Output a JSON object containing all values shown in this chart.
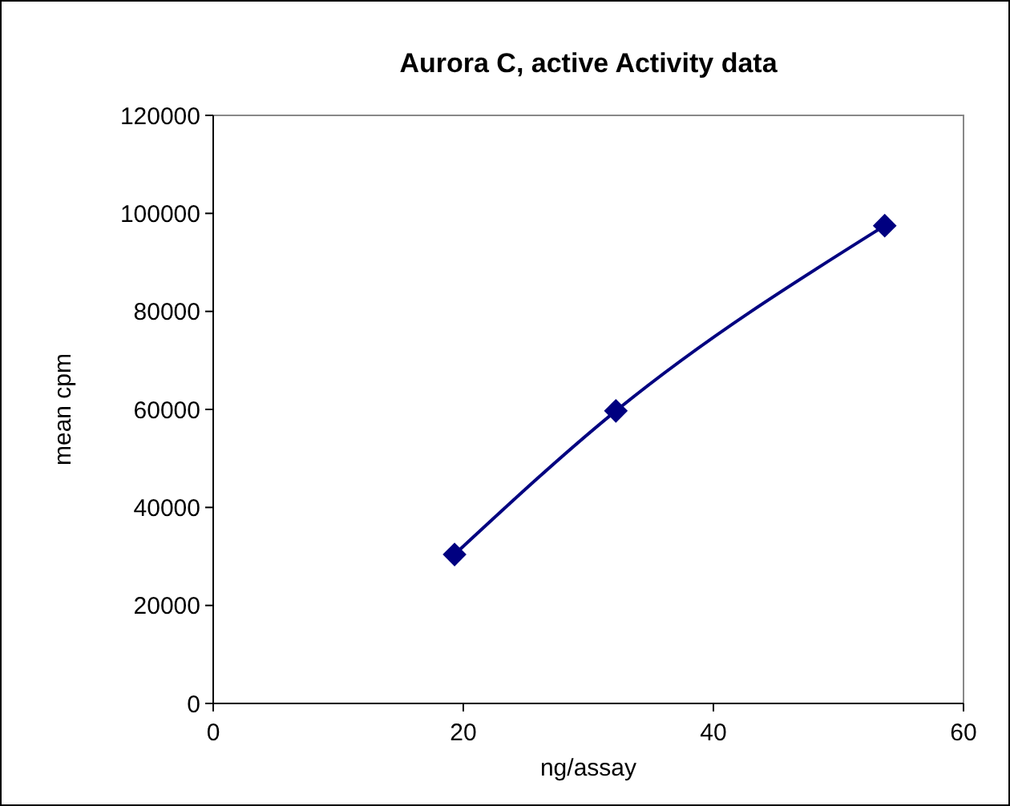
{
  "chart_data": {
    "type": "line",
    "title": "Aurora C, active Activity data",
    "xlabel": "ng/assay",
    "ylabel": "mean cpm",
    "x": [
      19.3,
      32.2,
      53.7
    ],
    "series": [
      {
        "color": "#000080",
        "values": [
          30400,
          59700,
          97500
        ]
      }
    ],
    "xlim": [
      0,
      60
    ],
    "xticks": [
      0,
      20,
      40,
      60
    ],
    "ylim": [
      0,
      120000
    ],
    "yticks": [
      0,
      20000,
      40000,
      60000,
      80000,
      100000,
      120000
    ],
    "marker": "diamond",
    "line_style": "solid",
    "grid": false
  }
}
